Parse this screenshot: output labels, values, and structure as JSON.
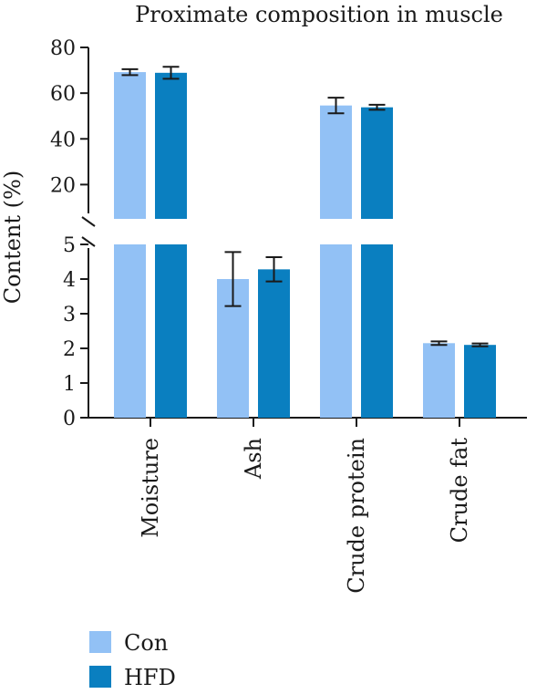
{
  "chart_data": {
    "type": "bar",
    "title": "Proximate composition in muscle",
    "ylabel": "Content (%)",
    "xlabel": "",
    "categories": [
      "Moisture",
      "Ash",
      "Crude protein",
      "Crude fat"
    ],
    "series": [
      {
        "name": "Con",
        "color": "#92c1f5",
        "values": [
          69.2,
          4.0,
          54.6,
          2.15
        ],
        "errors": [
          1.3,
          0.78,
          3.4,
          0.05
        ]
      },
      {
        "name": "HFD",
        "color": "#0a7fc0",
        "values": [
          68.9,
          4.28,
          53.8,
          2.1
        ],
        "errors": [
          2.6,
          0.35,
          1.1,
          0.04
        ]
      }
    ],
    "axis_break": true,
    "lower_segment": {
      "ylim": [
        0,
        5
      ],
      "ticks": [
        0,
        1,
        2,
        3,
        4,
        5
      ]
    },
    "upper_segment": {
      "ylim": [
        5,
        80
      ],
      "ticks": [
        20,
        40,
        60,
        80
      ]
    },
    "legend_position": "bottom-left",
    "grid": false
  }
}
